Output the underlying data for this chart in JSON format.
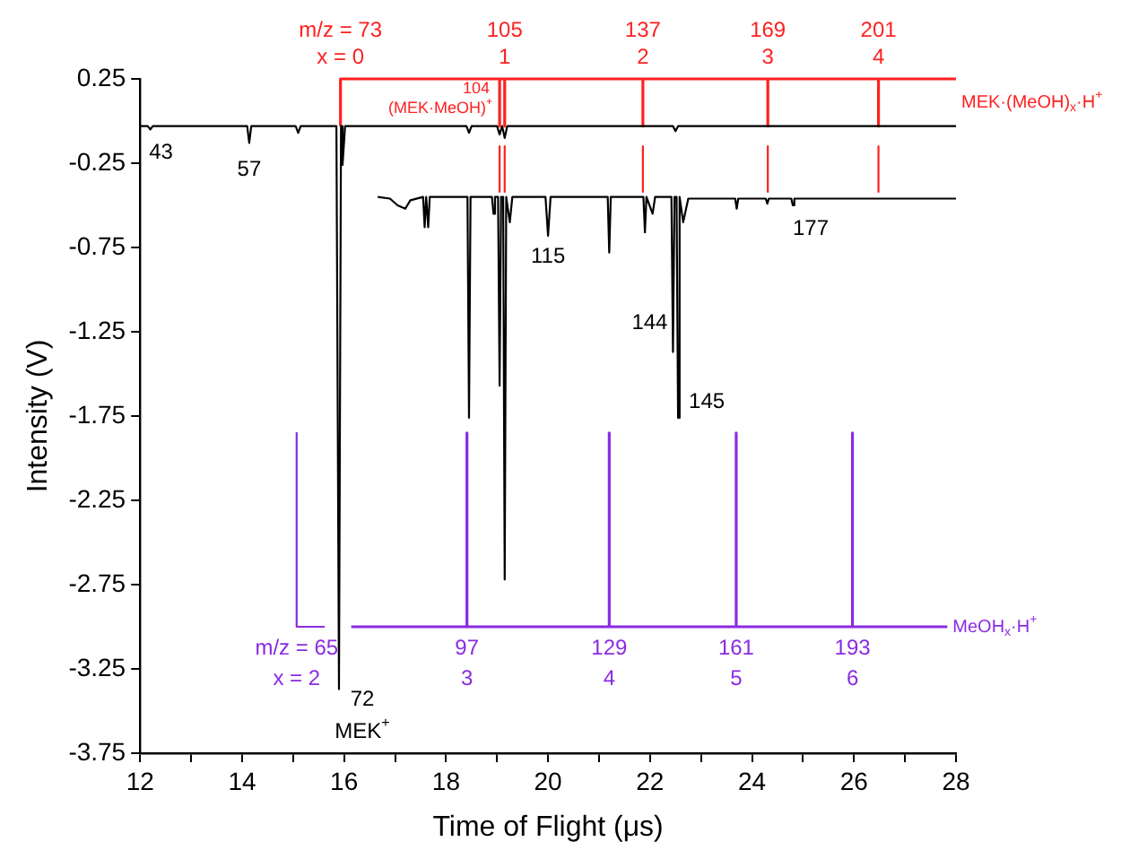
{
  "chart_data": {
    "type": "line",
    "xlabel": "Time of Flight (μs)",
    "ylabel": "Intensity (V)",
    "xlim": [
      12,
      28
    ],
    "xticks": [
      12,
      {
        "value": 13,
        "label": null
      },
      14,
      {
        "value": 15,
        "label": null
      },
      16,
      {
        "value": 17,
        "label": null
      },
      18,
      {
        "value": 19,
        "label": null
      },
      20,
      {
        "value": 21,
        "label": null
      },
      22,
      {
        "value": 23,
        "label": null
      },
      24,
      {
        "value": 25,
        "label": null
      },
      26,
      {
        "value": 27,
        "label": null
      },
      28
    ],
    "ylim": [
      -3.75,
      0.25
    ],
    "yticks": [
      0.25,
      -0.25,
      -0.75,
      -1.25,
      -1.75,
      -2.25,
      -2.75,
      -3.25,
      -3.75
    ],
    "grid": false,
    "legend": false,
    "marker": "none",
    "line_style": "solid",
    "series": [
      {
        "color": "#000000",
        "x": [
          12,
          12.15,
          12.2,
          12.25,
          14.1,
          14.14,
          14.18,
          15.05,
          15.1,
          15.15,
          15.85,
          15.9,
          15.94,
          15.97,
          16.02,
          16.3,
          18.4,
          18.45,
          18.5,
          19.0,
          19.05,
          19.1,
          19.15,
          19.2,
          22.45,
          22.5,
          22.55,
          28
        ],
        "values": [
          -0.03,
          -0.03,
          -0.05,
          -0.03,
          -0.03,
          -0.13,
          -0.03,
          -0.03,
          -0.07,
          -0.03,
          -0.03,
          -3.37,
          -0.03,
          -0.26,
          -0.03,
          -0.03,
          -0.03,
          -0.07,
          -0.03,
          -0.03,
          -0.08,
          -0.03,
          -0.1,
          -0.03,
          -0.03,
          -0.06,
          -0.03,
          -0.03
        ]
      },
      {
        "color": "#000000",
        "x": [
          16.66,
          16.9,
          17.05,
          17.2,
          17.3,
          17.55,
          17.58,
          17.61,
          17.65,
          17.68,
          18.0,
          18.42,
          18.45,
          18.48,
          18.9,
          18.93,
          18.96,
          19.02,
          19.05,
          19.08,
          19.12,
          19.15,
          19.18,
          19.25,
          19.3,
          19.95,
          20.0,
          20.05,
          21.17,
          21.2,
          21.23,
          21.87,
          21.9,
          21.93,
          22.05,
          22.1,
          22.42,
          22.45,
          22.48,
          22.52,
          22.55,
          22.58,
          22.65,
          22.75,
          23.67,
          23.7,
          23.73,
          24.27,
          24.3,
          24.33,
          24.77,
          24.8,
          24.83,
          28
        ],
        "values": [
          -0.45,
          -0.46,
          -0.5,
          -0.52,
          -0.47,
          -0.45,
          -0.63,
          -0.45,
          -0.63,
          -0.45,
          -0.45,
          -0.45,
          -1.76,
          -0.45,
          -0.45,
          -0.55,
          -0.45,
          -0.45,
          -1.57,
          -0.45,
          -0.45,
          -2.72,
          -0.45,
          -0.6,
          -0.45,
          -0.45,
          -0.68,
          -0.45,
          -0.45,
          -0.78,
          -0.45,
          -0.45,
          -0.66,
          -0.45,
          -0.55,
          -0.45,
          -0.45,
          -1.37,
          -0.45,
          -0.45,
          -1.76,
          -0.45,
          -0.6,
          -0.46,
          -0.46,
          -0.52,
          -0.46,
          -0.46,
          -0.49,
          -0.46,
          -0.46,
          -0.5,
          -0.46,
          -0.46
        ]
      },
      {
        "name": "MEK·(MeOH)$_{x}$·H$^{+}$",
        "color": "#ff2020",
        "x": [
          15.93,
          15.93,
          19.05,
          19.05,
          19.05,
          19.15,
          19.15,
          19.15,
          21.86,
          21.86,
          21.86,
          24.31,
          24.31,
          24.31,
          26.48,
          26.48,
          26.48,
          28
        ],
        "values": [
          -0.03,
          0.25,
          0.25,
          -0.03,
          0.25,
          0.25,
          -0.03,
          0.25,
          0.25,
          -0.03,
          0.25,
          0.25,
          -0.03,
          0.25,
          0.25,
          -0.03,
          0.25,
          0.25
        ]
      },
      {
        "color": "#ff2020",
        "x": [
          19.05,
          19.05
        ],
        "values": [
          -0.15,
          -0.42
        ]
      },
      {
        "color": "#ff2020",
        "x": [
          19.15,
          19.15
        ],
        "values": [
          -0.15,
          -0.42
        ]
      },
      {
        "color": "#ff2020",
        "x": [
          21.86,
          21.86
        ],
        "values": [
          -0.15,
          -0.42
        ]
      },
      {
        "color": "#ff2020",
        "x": [
          24.31,
          24.31
        ],
        "values": [
          -0.15,
          -0.42
        ]
      },
      {
        "color": "#ff2020",
        "x": [
          26.48,
          26.48
        ],
        "values": [
          -0.15,
          -0.42
        ]
      },
      {
        "color": "#8a2be2",
        "x": [
          15.07,
          15.07,
          15.62
        ],
        "values": [
          -1.85,
          -3.0,
          -3.0
        ]
      },
      {
        "name": "MeOH$_{x}$·H$^{+}$",
        "color": "#8a2be2",
        "x": [
          16.14,
          18.41,
          18.41,
          18.41,
          21.2,
          21.2,
          21.2,
          23.69,
          23.69,
          23.69,
          25.97,
          25.97,
          25.97,
          27.83
        ],
        "values": [
          -3.0,
          -3.0,
          -1.85,
          -3.0,
          -3.0,
          -1.85,
          -3.0,
          -3.0,
          -1.85,
          -3.0,
          -3.0,
          -1.85,
          -3.0,
          -3.0
        ]
      }
    ],
    "annotations": [
      {
        "text": "43",
        "x": 12.2,
        "y": -0.05
      },
      {
        "text": "57",
        "x": 14.14,
        "y": -0.13
      },
      {
        "text": "72",
        "x": 15.9,
        "y": -3.37
      },
      {
        "text": "MEK$^{+}$",
        "x": 15.9,
        "y": -3.37
      },
      {
        "text": "104",
        "x": 19.05,
        "y": -0.03
      },
      {
        "text": "(MEK·MeOH)$^{+}$",
        "x": 19.05,
        "y": -0.03
      },
      {
        "text": "115",
        "x": 20.0,
        "y": -0.68
      },
      {
        "text": "144",
        "x": 22.45,
        "y": -1.37
      },
      {
        "text": "145",
        "x": 22.55,
        "y": -1.76
      },
      {
        "text": "177",
        "x": 24.8,
        "y": -0.5
      },
      {
        "text": "m/z = 73\nx = 0",
        "x": 15.93,
        "y": 0.25
      },
      {
        "text": "105\n1",
        "x": 19.15,
        "y": 0.25
      },
      {
        "text": "137\n2",
        "x": 21.86,
        "y": 0.25
      },
      {
        "text": "169\n3",
        "x": 24.31,
        "y": 0.25
      },
      {
        "text": "201\n4",
        "x": 26.48,
        "y": 0.25
      },
      {
        "text": "m/z = 65\nx = 2",
        "x": 15.07,
        "y": -3.0
      },
      {
        "text": "97\n3",
        "x": 18.41,
        "y": -3.0
      },
      {
        "text": "129\n4",
        "x": 21.2,
        "y": -3.0
      },
      {
        "text": "161\n5",
        "x": 23.69,
        "y": -3.0
      },
      {
        "text": "193\n6",
        "x": 25.97,
        "y": -3.0
      }
    ]
  }
}
